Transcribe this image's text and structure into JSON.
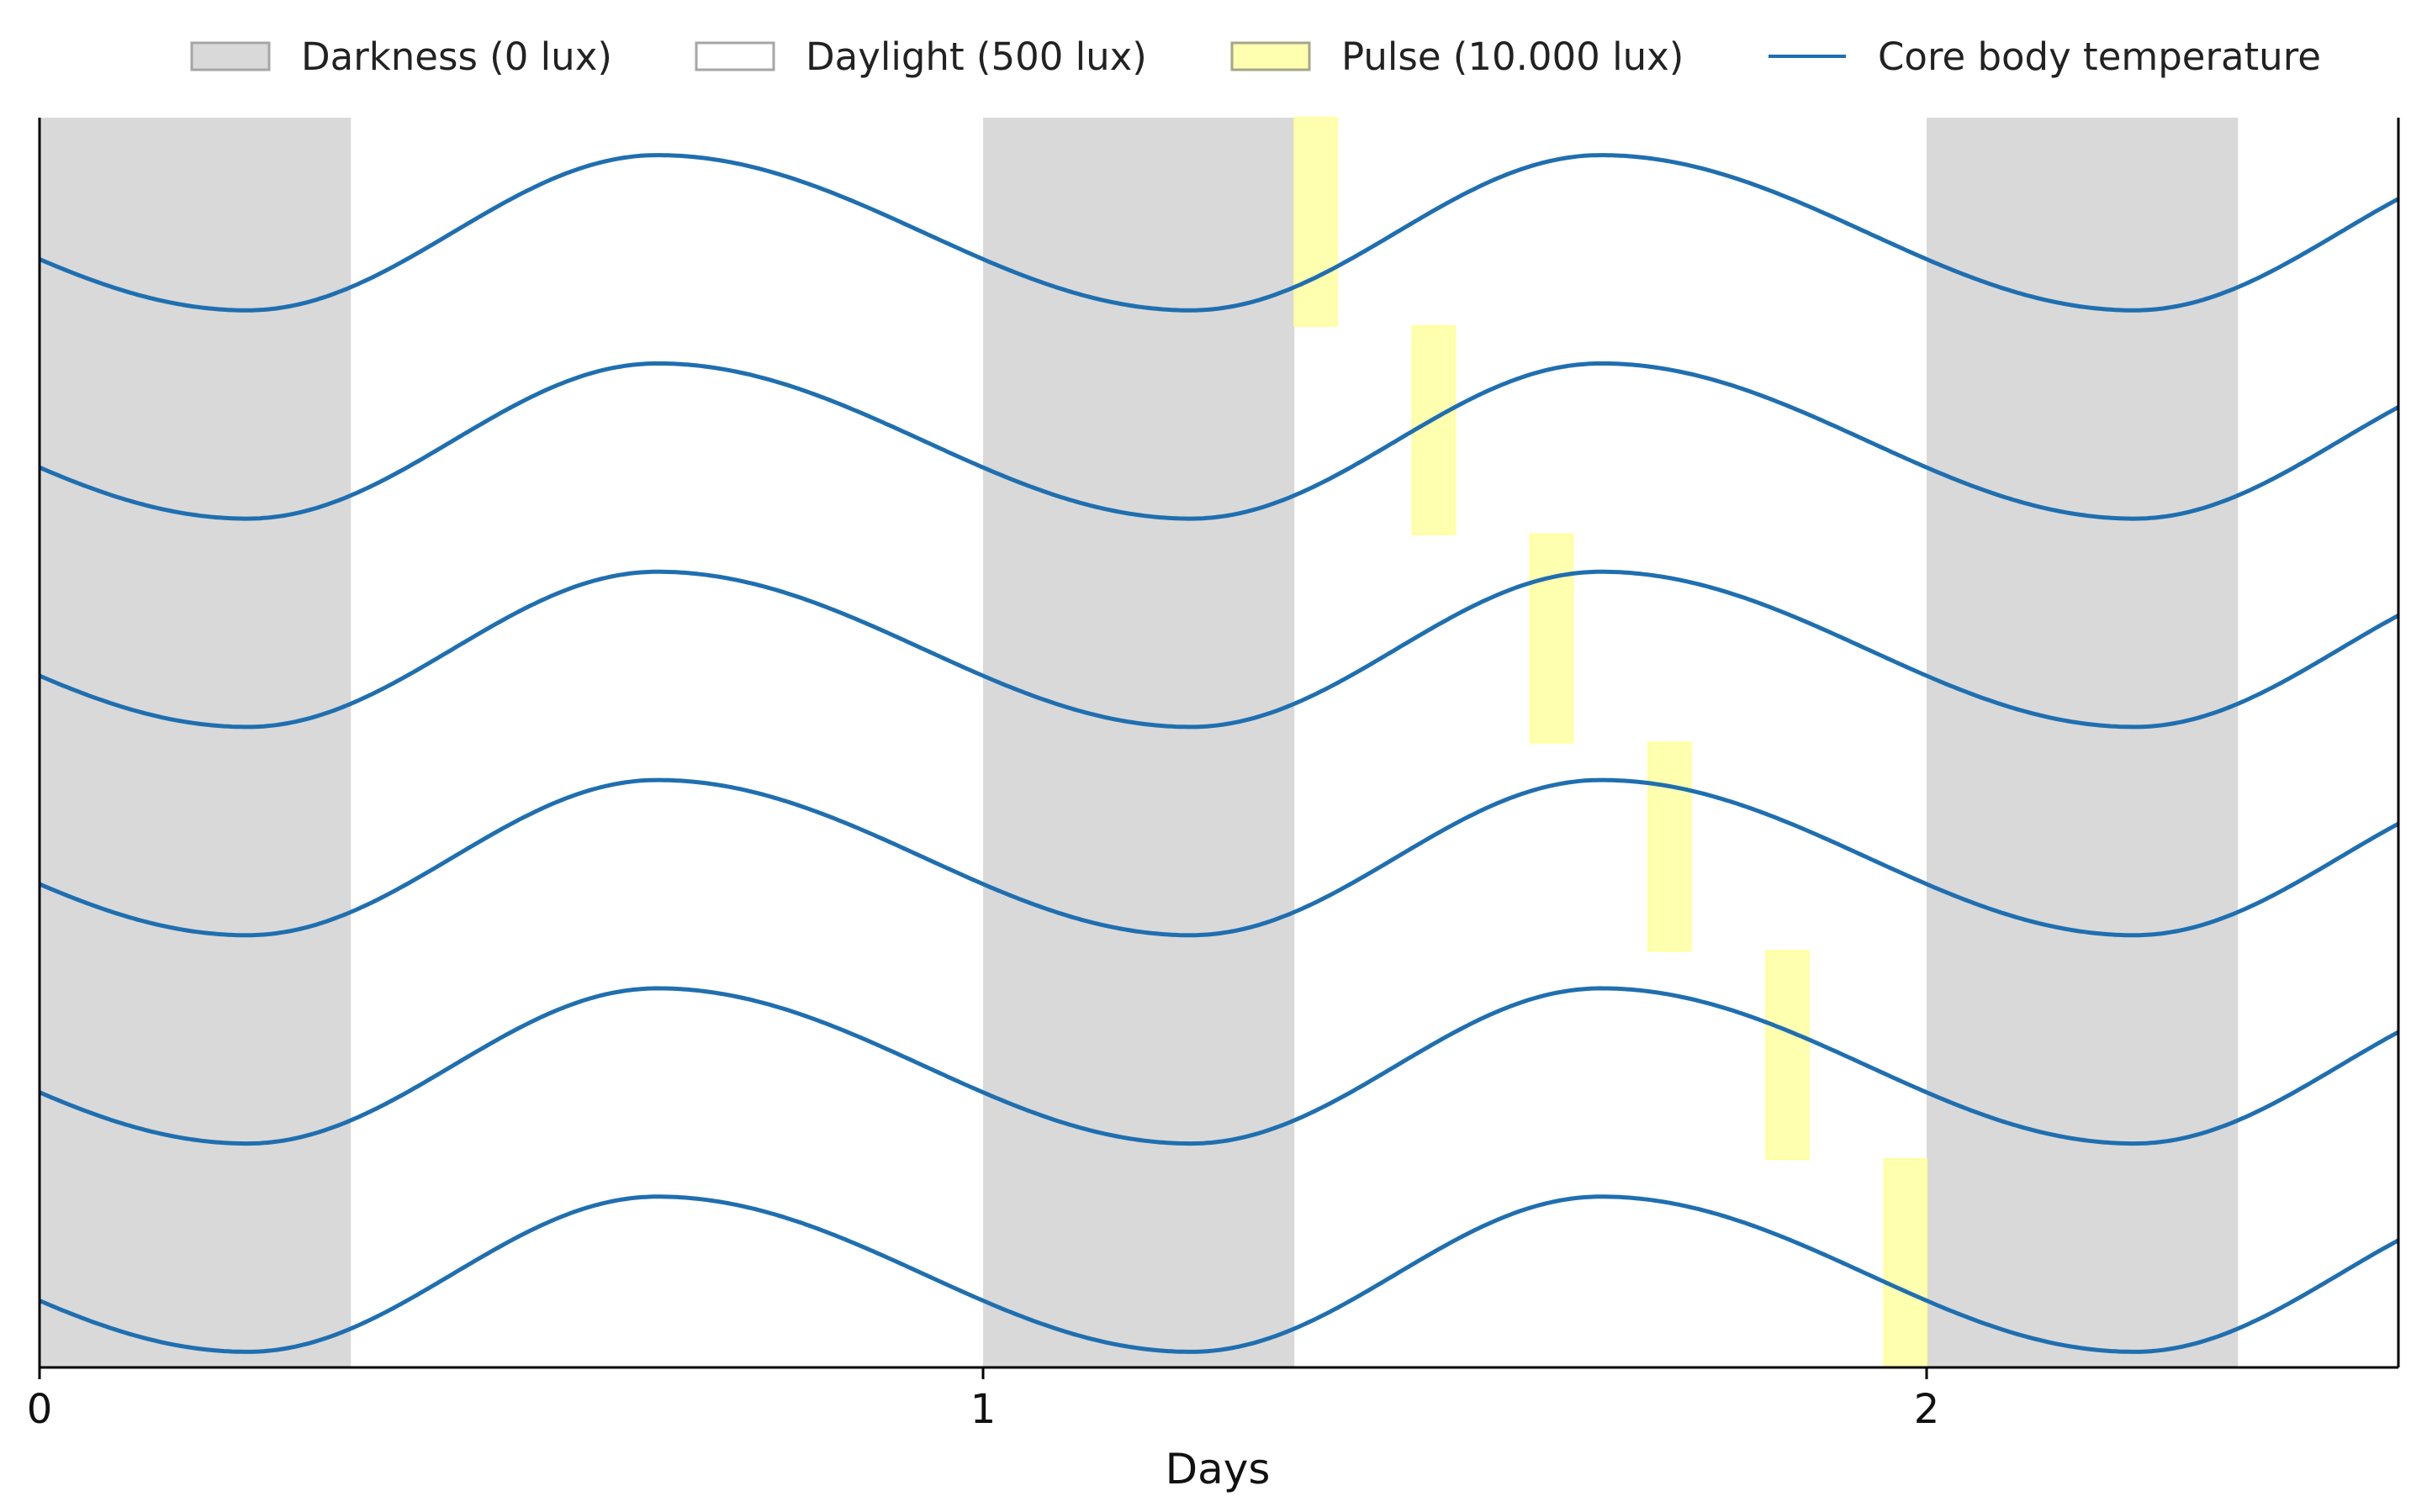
{
  "chart_data": {
    "type": "line",
    "xlabel": "Days",
    "xlim": [
      0,
      2.5
    ],
    "x_ticks": [
      0,
      1,
      2
    ],
    "x_tick_labels": [
      "0",
      "1",
      "2"
    ],
    "ylabel": "",
    "grid": false,
    "legend": {
      "placement": "top",
      "entries": [
        {
          "label": "Darkness (0 lux)",
          "kind": "patch",
          "fill": "#d9d9d9",
          "stroke": "#a6a6a6"
        },
        {
          "label": "Daylight (500 lux)",
          "kind": "patch",
          "fill": "#ffffff",
          "stroke": "#a6a6a6"
        },
        {
          "label": "Pulse (10.000 lux)",
          "kind": "patch",
          "fill": "#ffffb0",
          "stroke": "#a6a68a"
        },
        {
          "label": "Core body temperature",
          "kind": "line",
          "stroke": "#1f6fb0"
        }
      ]
    },
    "darkness_intervals": [
      [
        0,
        0.33
      ],
      [
        1,
        1.33
      ],
      [
        2,
        2.33
      ]
    ],
    "rows": 6,
    "pulses": [
      {
        "row": 1,
        "start": 1.33,
        "end": 1.375
      },
      {
        "row": 2,
        "start": 1.455,
        "end": 1.5
      },
      {
        "row": 3,
        "start": 1.58,
        "end": 1.625
      },
      {
        "row": 4,
        "start": 1.705,
        "end": 1.75
      },
      {
        "row": 5,
        "start": 1.83,
        "end": 1.875
      },
      {
        "row": 6,
        "start": 1.955,
        "end": 2.0
      }
    ],
    "temperature_curve": {
      "trough_day_fraction": 0.22,
      "peak_day_fraction": 0.655
    },
    "colors": {
      "darkness": "#d9d9d9",
      "pulse": "#ffffb0",
      "pulse_edge": "#ffff99",
      "temperature": "#1f6fb0",
      "axis": "#000000"
    }
  }
}
